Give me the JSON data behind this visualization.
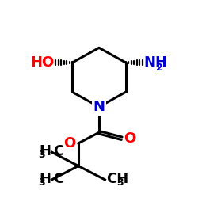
{
  "bg_color": "#ffffff",
  "bond_color": "#000000",
  "bond_lw": 2.2,
  "N_color": "#0000cc",
  "O_color": "#ff0000",
  "NH2_color": "#0000cc",
  "OH_color": "#ff0000",
  "fs_label": 13,
  "fs_sub": 9,
  "figsize": [
    2.5,
    2.5
  ],
  "dpi": 100,
  "xlim": [
    0,
    10
  ],
  "ylim": [
    0,
    10
  ]
}
